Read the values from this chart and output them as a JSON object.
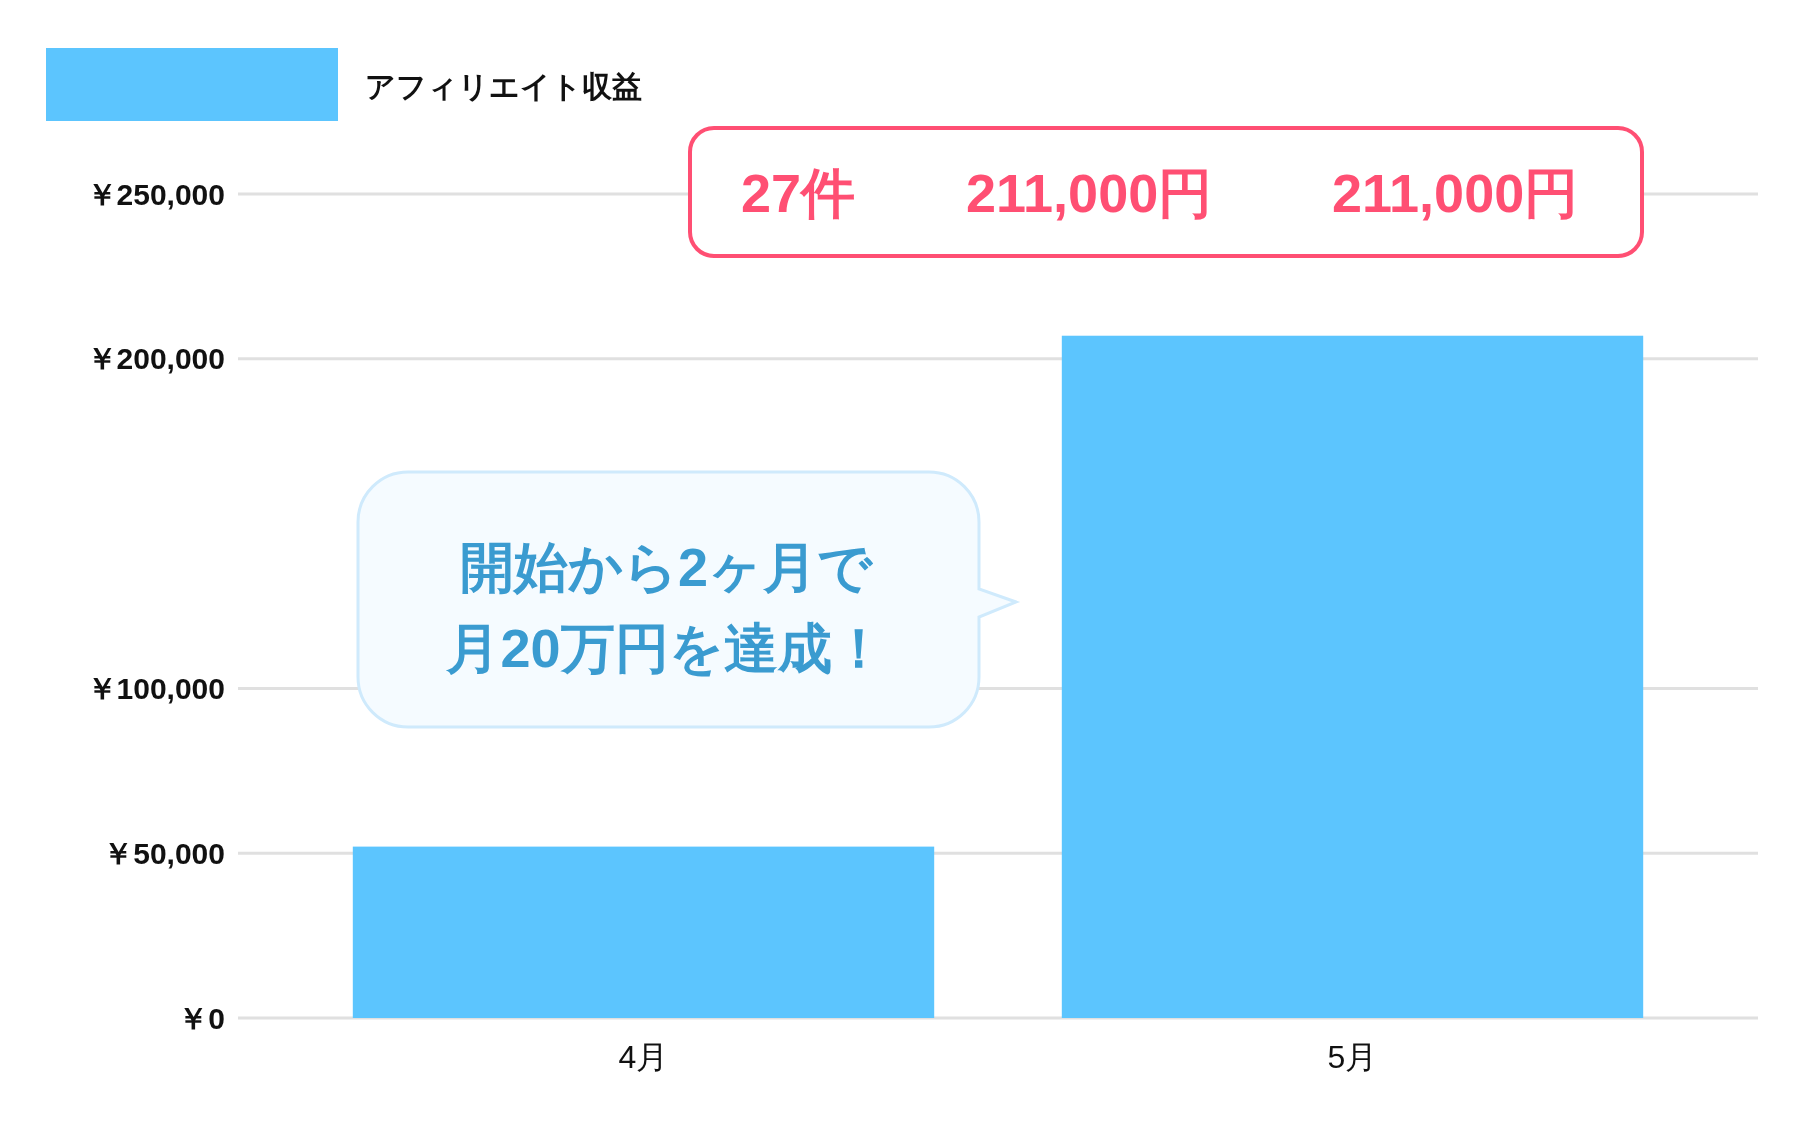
{
  "chart_data": {
    "type": "bar",
    "categories": [
      "4月",
      "5月"
    ],
    "series": [
      {
        "name": "アフィリエイト収益",
        "color": "#5cc5fe",
        "values": [
          52000,
          207000
        ]
      }
    ],
    "ylim": [
      0,
      250000
    ],
    "yticks": [
      {
        "value": 0,
        "label": "￥0"
      },
      {
        "value": 50000,
        "label": "￥50,000"
      },
      {
        "value": 100000,
        "label": "￥100,000"
      },
      {
        "value": 200000,
        "label": "￥200,000"
      },
      {
        "value": 250000,
        "label": "￥250,000"
      }
    ],
    "grid": "y",
    "legend": "top left",
    "annotations": [
      "27件",
      "211,000円",
      "211,000円",
      "開始から2ヶ月で月20万円を達成！"
    ]
  }
}
